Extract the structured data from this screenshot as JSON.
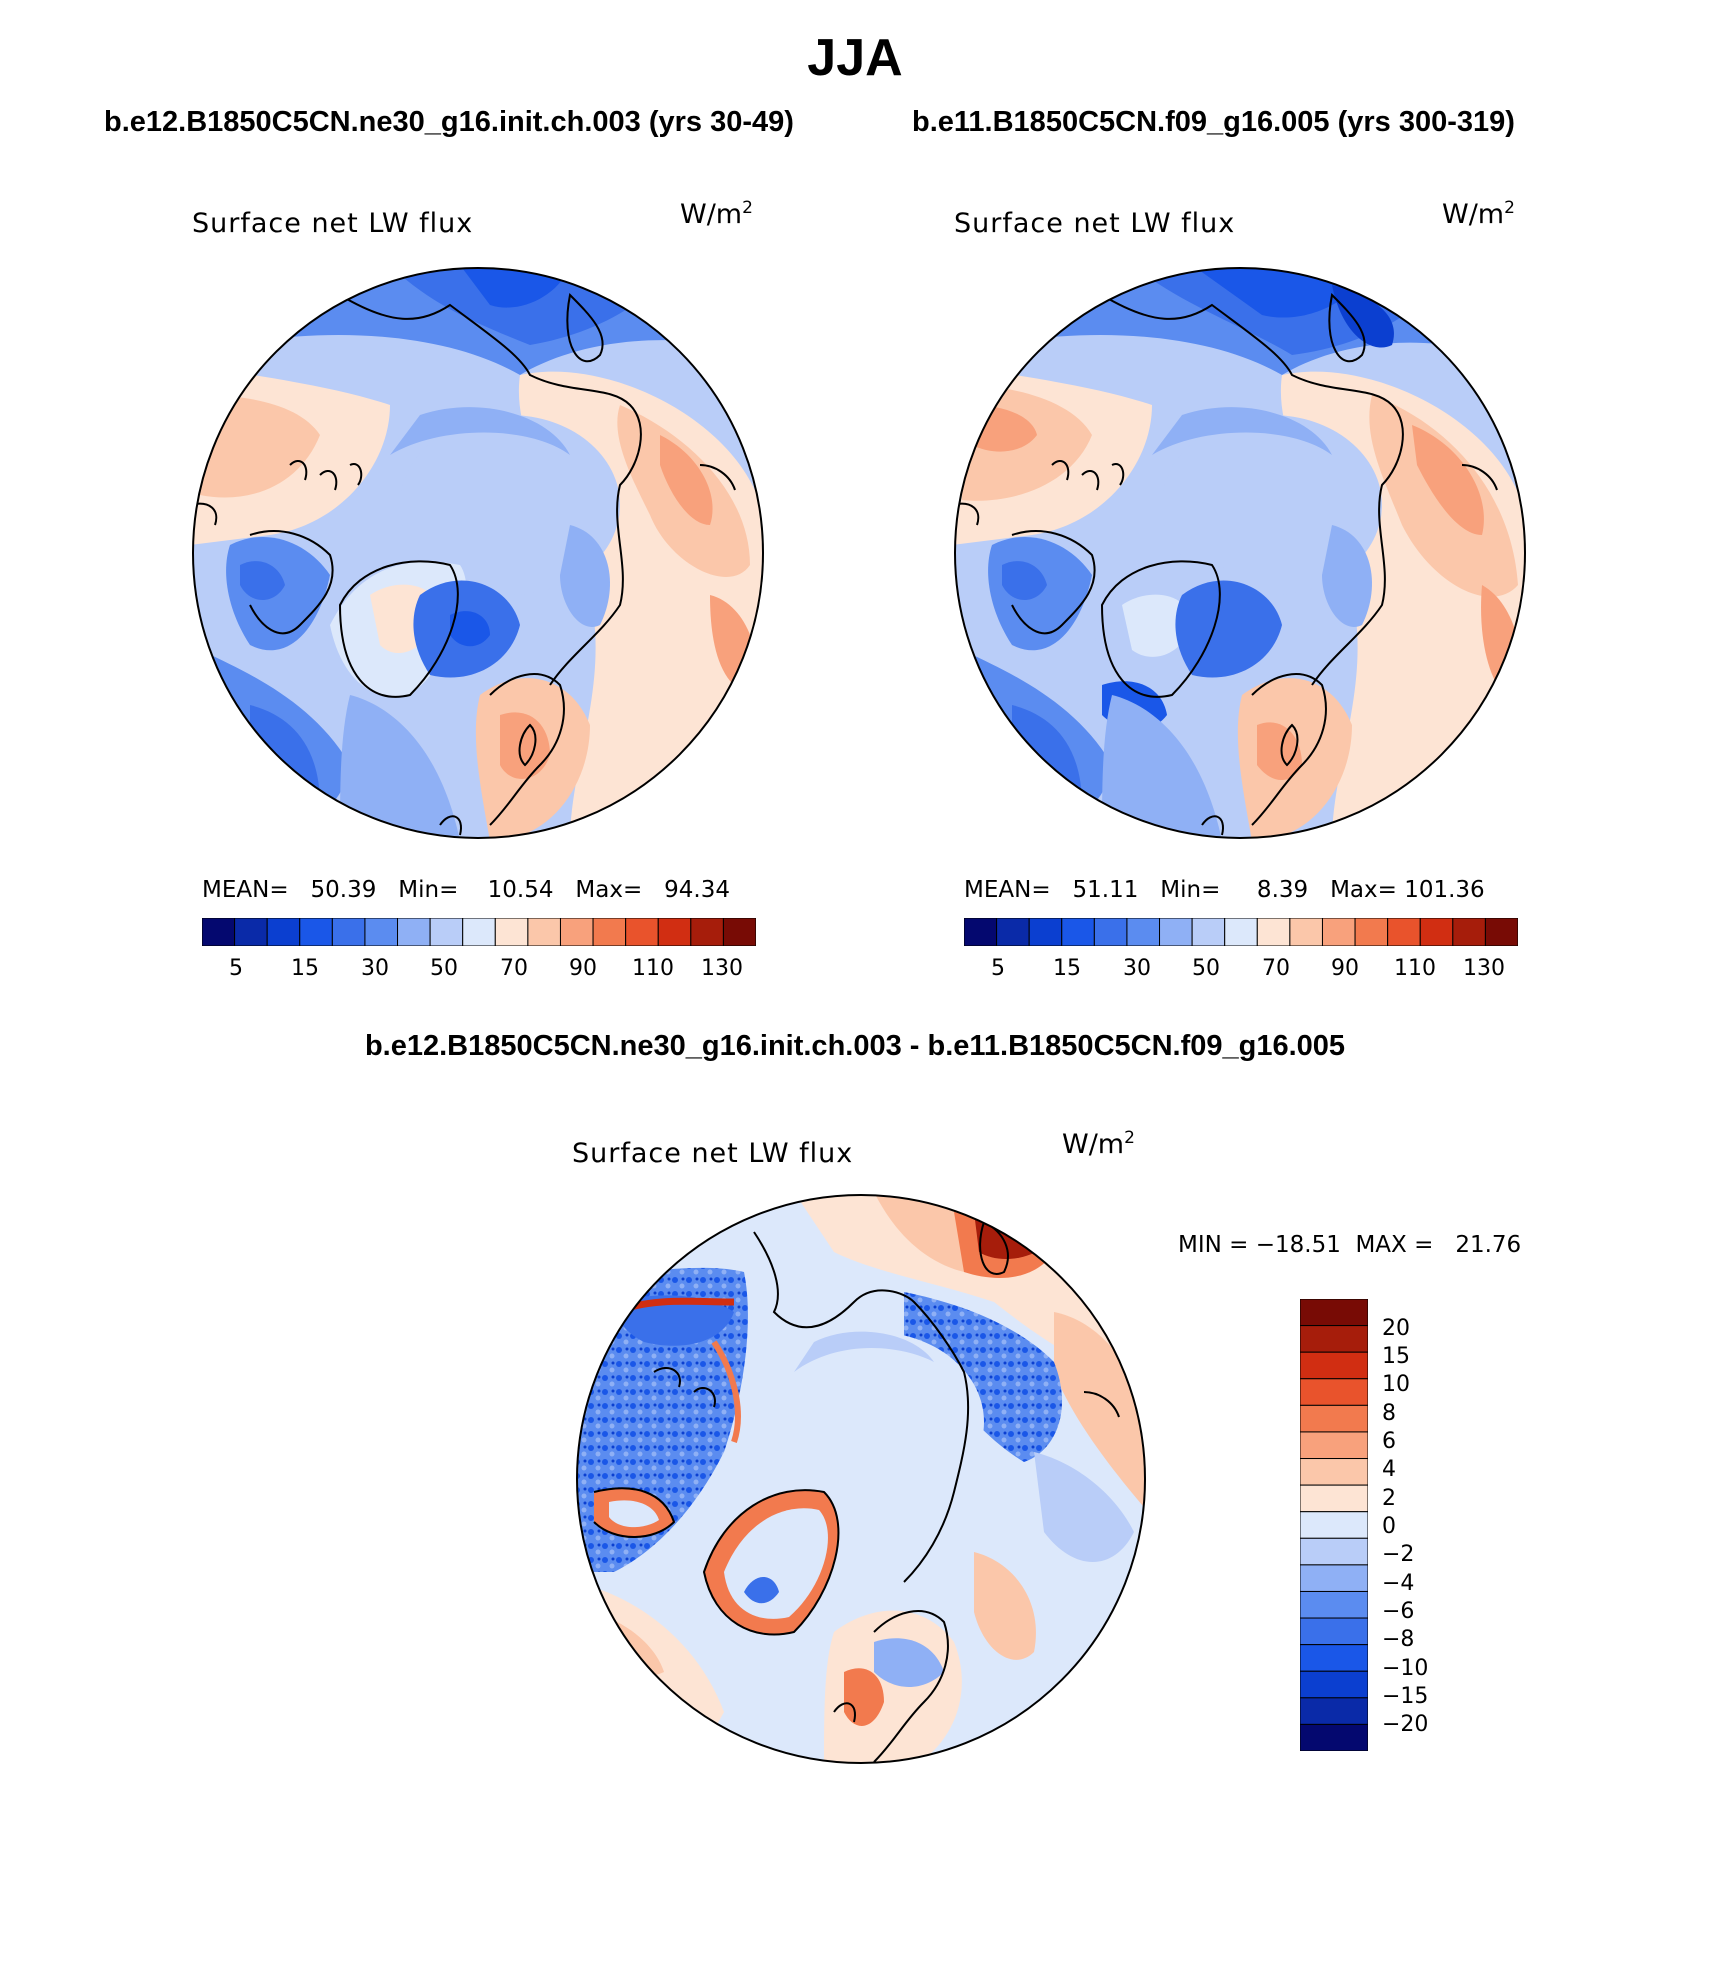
{
  "figure": {
    "title": "JJA",
    "colors": {
      "abs_palette": [
        "#04086f",
        "#0a2aa8",
        "#0b3fd0",
        "#1a57e8",
        "#3a70ea",
        "#5b8cf0",
        "#8fb0f5",
        "#b9cdf8",
        "#dce8fb",
        "#fde4d4",
        "#fbc7aa",
        "#f8a17c",
        "#f27a4e",
        "#e9532c",
        "#d12e12",
        "#a61d0b",
        "#780b05"
      ],
      "diff_palette": [
        "#04086f",
        "#0a2aa8",
        "#0b3fd0",
        "#1a57e8",
        "#3a70ea",
        "#5b8cf0",
        "#8fb0f5",
        "#b9cdf8",
        "#dce8fb",
        "#fde4d4",
        "#fbc7aa",
        "#f8a17c",
        "#f27a4e",
        "#e9532c",
        "#d12e12",
        "#a61d0b",
        "#780b05"
      ],
      "coastline": "#000000"
    },
    "panels": [
      {
        "case_title": "b.e12.B1850C5CN.ne30_g16.init.ch.003 (yrs 30-49)",
        "variable": "Surface net LW flux",
        "units_base": "W/m",
        "units_exp": "2",
        "stats": "MEAN=   50.39   Min=    10.54   Max=   94.34",
        "colorbar_ticks": [
          "5",
          "15",
          "30",
          "50",
          "70",
          "90",
          "110",
          "130"
        ]
      },
      {
        "case_title": "b.e11.B1850C5CN.f09_g16.005 (yrs 300-319)",
        "variable": "Surface net LW flux",
        "units_base": "W/m",
        "units_exp": "2",
        "stats": "MEAN=   51.11   Min=     8.39   Max= 101.36",
        "colorbar_ticks": [
          "5",
          "15",
          "30",
          "50",
          "70",
          "90",
          "110",
          "130"
        ]
      }
    ],
    "difference": {
      "title": "b.e12.B1850C5CN.ne30_g16.init.ch.003 - b.e11.B1850C5CN.f09_g16.005",
      "variable": "Surface net LW flux",
      "units_base": "W/m",
      "units_exp": "2",
      "minmax": "MIN = −18.51  MAX =   21.76",
      "colorbar_labels": [
        "20",
        "15",
        "10",
        "8",
        "6",
        "4",
        "2",
        "0",
        "−2",
        "−4",
        "−6",
        "−8",
        "−10",
        "−15",
        "−20"
      ]
    }
  }
}
